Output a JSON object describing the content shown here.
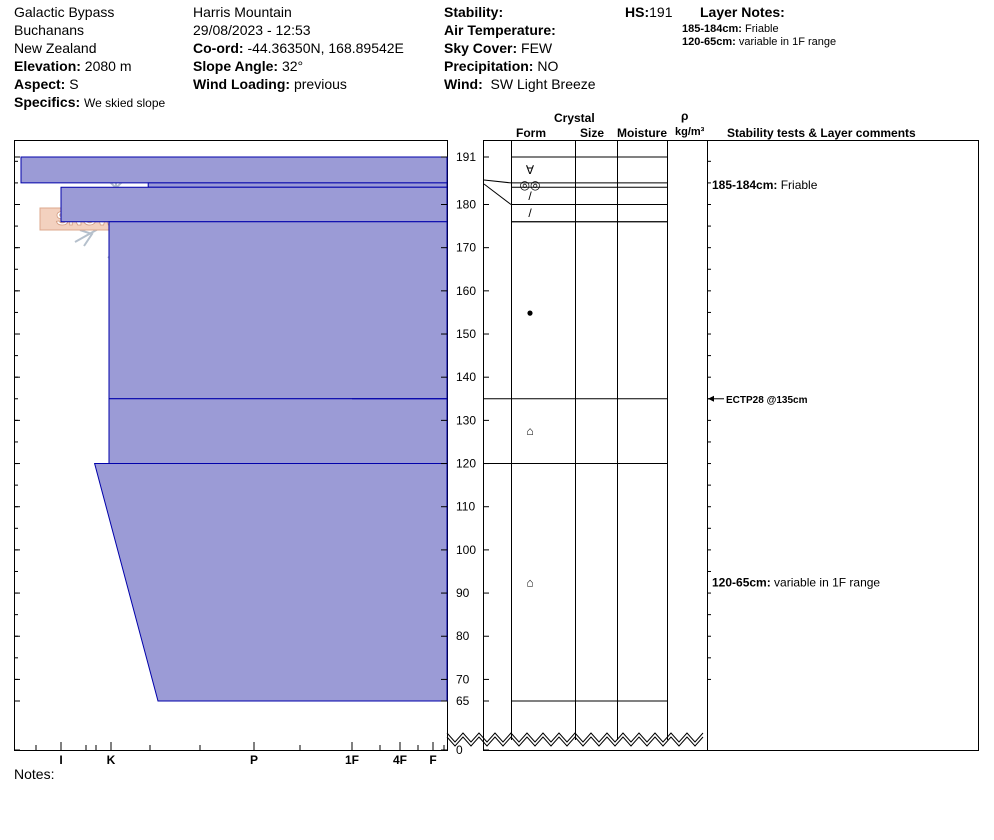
{
  "header": {
    "location_name": "Galactic Bypass",
    "region": "Buchanans",
    "country": "New Zealand",
    "elevation_label": "Elevation:",
    "elevation_value": "2080 m",
    "aspect_label": "Aspect:",
    "aspect_value": "S",
    "specifics_label": "Specifics:",
    "specifics_value": "We skied slope",
    "observer": "Harris Mountain",
    "datetime": "29/08/2023 - 12:53",
    "coord_label": "Co-ord:",
    "coord_value": "-44.36350N, 168.89542E",
    "slope_label": "Slope Angle:",
    "slope_value": "32°",
    "wind_loading_label": "Wind Loading:",
    "wind_loading_value": "previous",
    "stability_label": "Stability:",
    "stability_value": "",
    "air_temp_label": "Air Temperature:",
    "air_temp_value": "",
    "sky_label": "Sky Cover:",
    "sky_value": "FEW",
    "precip_label": "Precipitation:",
    "precip_value": "NO",
    "wind_label": "Wind:",
    "wind_value": "SW Light Breeze",
    "hs_label": "HS:",
    "hs_value": "191",
    "layer_notes_label": "Layer Notes:",
    "layer_notes": [
      {
        "label": "185-184cm:",
        "text": "Friable"
      },
      {
        "label": "120-65cm:",
        "text": "variable in 1F range"
      }
    ]
  },
  "logo": {
    "text": "SNOW PILOT"
  },
  "columns": {
    "crystal": "Crystal",
    "form": "Form",
    "size": "Size",
    "moisture": "Moisture",
    "rho": "ρ",
    "density_unit": "kg/m³",
    "comments": "Stability tests & Layer comments"
  },
  "notes_label": "Notes:",
  "colors": {
    "hardness_fill": "#9b9bd6",
    "hardness_stroke": "#0000aa"
  },
  "chart_data": {
    "type": "snow-profile",
    "hs": 191,
    "depth_ticks": [
      191,
      180,
      170,
      160,
      150,
      140,
      130,
      120,
      110,
      100,
      90,
      80,
      70,
      65,
      0
    ],
    "hardness_scale": [
      {
        "label": "I",
        "value": 0.33
      },
      {
        "label": "K",
        "value": 1
      },
      {
        "label": "P",
        "value": 2
      },
      {
        "label": "1F",
        "value": 3
      },
      {
        "label": "4F",
        "value": 4
      },
      {
        "label": "F",
        "value": 5
      }
    ],
    "layers": [
      {
        "top": 191,
        "bottom": 185,
        "hardness_top": 5.2,
        "hardness_bottom": 5.2
      },
      {
        "top": 185,
        "bottom": 184,
        "hardness_top": 2.6,
        "hardness_bottom": 2.6
      },
      {
        "top": 184,
        "bottom": 176,
        "hardness_top": 4.0,
        "hardness_bottom": 4.0
      },
      {
        "top": 176,
        "bottom": 135,
        "hardness_top": 3.0,
        "hardness_bottom": 3.0
      },
      {
        "top": 135,
        "bottom": 120,
        "hardness_top": 3.0,
        "hardness_bottom": 3.0
      },
      {
        "top": 120,
        "bottom": 65,
        "hardness_top": 3.3,
        "hardness_bottom": 2.5
      }
    ],
    "boundaries": [
      191,
      185,
      184,
      180,
      176,
      135,
      120,
      65
    ],
    "crystal_forms": [
      {
        "depth": 188,
        "symbol": "∀"
      },
      {
        "depth": 182,
        "symbol": "/"
      },
      {
        "depth": 184.5,
        "symbol": "◎◎"
      },
      {
        "depth": 178,
        "symbol": "/"
      },
      {
        "depth": 155,
        "symbol": "●"
      },
      {
        "depth": 127.5,
        "symbol": "⌂"
      },
      {
        "depth": 92.5,
        "symbol": "⌂"
      }
    ],
    "comments": [
      {
        "depth": 184.5,
        "label": "185-184cm:",
        "text": "Friable"
      },
      {
        "depth": 92.5,
        "label": "120-65cm:",
        "text": "variable in 1F range"
      }
    ],
    "tests": [
      {
        "depth": 135,
        "text": "ECTP28 @135cm"
      }
    ]
  }
}
